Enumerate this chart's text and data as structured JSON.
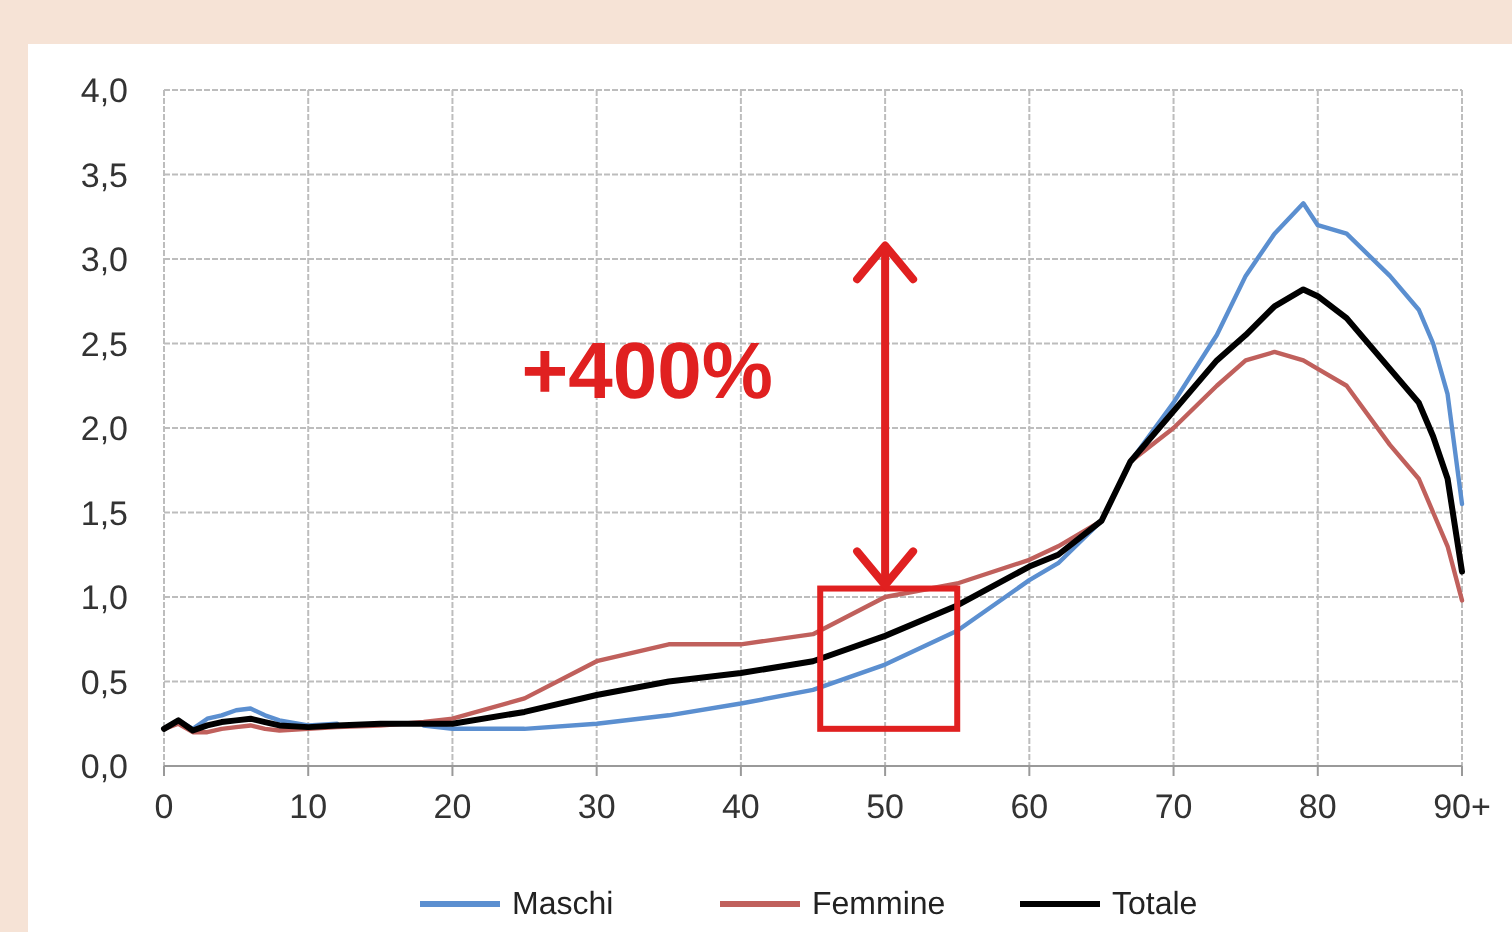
{
  "chart_data": {
    "type": "line",
    "x": [
      0,
      1,
      2,
      3,
      4,
      5,
      6,
      7,
      8,
      10,
      12,
      15,
      18,
      20,
      25,
      30,
      35,
      40,
      45,
      50,
      55,
      60,
      62,
      65,
      67,
      70,
      73,
      75,
      77,
      79,
      80,
      82,
      85,
      87,
      88,
      89,
      90
    ],
    "series": [
      {
        "name": "Maschi",
        "color": "#5b8fd0",
        "values": [
          0.22,
          0.27,
          0.22,
          0.28,
          0.3,
          0.33,
          0.34,
          0.3,
          0.27,
          0.24,
          0.25,
          null,
          0.24,
          0.22,
          0.22,
          0.25,
          0.3,
          0.37,
          0.45,
          0.6,
          0.8,
          1.1,
          1.2,
          1.45,
          1.8,
          2.15,
          2.55,
          2.9,
          3.15,
          3.33,
          3.2,
          3.15,
          2.9,
          2.7,
          2.5,
          2.2,
          1.55
        ]
      },
      {
        "name": "Femmine",
        "color": "#c0605c",
        "values": [
          0.22,
          0.25,
          0.2,
          0.2,
          0.22,
          0.23,
          0.24,
          0.22,
          0.21,
          0.22,
          0.23,
          0.24,
          0.26,
          0.28,
          0.4,
          0.62,
          0.72,
          0.72,
          0.78,
          1.0,
          1.08,
          1.22,
          1.3,
          1.45,
          1.8,
          2.0,
          2.25,
          2.4,
          2.45,
          2.4,
          2.35,
          2.25,
          1.9,
          1.7,
          1.5,
          1.3,
          0.98
        ]
      },
      {
        "name": "Totale",
        "color": "#000000",
        "values": [
          0.22,
          0.27,
          0.21,
          0.24,
          0.26,
          0.27,
          0.28,
          0.26,
          0.24,
          0.23,
          0.24,
          0.25,
          0.25,
          0.25,
          0.32,
          0.42,
          0.5,
          0.55,
          0.62,
          0.77,
          0.95,
          1.18,
          1.25,
          1.45,
          1.8,
          2.1,
          2.4,
          2.55,
          2.72,
          2.82,
          2.78,
          2.65,
          2.35,
          2.15,
          1.95,
          1.7,
          1.15
        ]
      }
    ],
    "xlim": [
      0,
      90
    ],
    "xticks": [
      0,
      10,
      20,
      30,
      40,
      50,
      60,
      70,
      80,
      {
        "value": 90,
        "label": "90+"
      }
    ],
    "ylim": [
      0,
      4
    ],
    "yticks": [
      {
        "value": 0,
        "label": "0,0"
      },
      {
        "value": 0.5,
        "label": "0,5"
      },
      {
        "value": 1,
        "label": "1,0"
      },
      {
        "value": 1.5,
        "label": "1,5"
      },
      {
        "value": 2,
        "label": "2,0"
      },
      {
        "value": 2.5,
        "label": "2,5"
      },
      {
        "value": 3,
        "label": "3,0"
      },
      {
        "value": 3.5,
        "label": "3,5"
      },
      {
        "value": 4,
        "label": "4,0"
      }
    ],
    "grid": true,
    "legend": "bottom",
    "marker": "none",
    "line_style": "solid",
    "annotations": [
      "+400%"
    ]
  }
}
